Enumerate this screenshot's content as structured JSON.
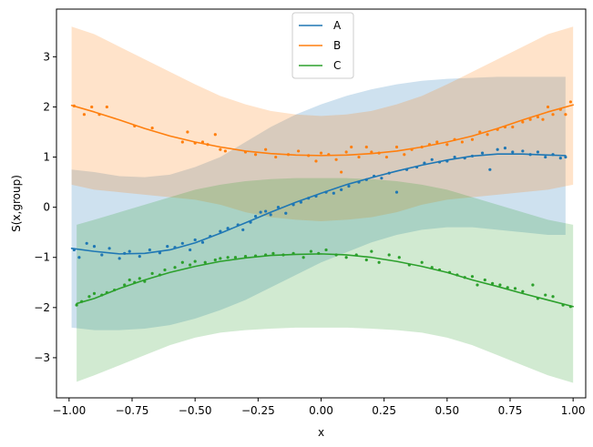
{
  "chart_data": {
    "type": "line",
    "title": "",
    "xlabel": "x",
    "ylabel": "S(x,group)",
    "xlim": [
      -1.05,
      1.05
    ],
    "ylim": [
      -3.8,
      3.95
    ],
    "xticks": [
      -1.0,
      -0.75,
      -0.5,
      -0.25,
      0.0,
      0.25,
      0.5,
      0.75,
      1.0
    ],
    "xtick_labels": [
      "−1.00",
      "−0.75",
      "−0.50",
      "−0.25",
      "0.00",
      "0.25",
      "0.50",
      "0.75",
      "1.00"
    ],
    "yticks": [
      -3,
      -2,
      -1,
      0,
      1,
      2,
      3
    ],
    "ytick_labels": [
      "−3",
      "−2",
      "−1",
      "0",
      "1",
      "2",
      "3"
    ],
    "grid": false,
    "legend_position": "top-center",
    "series": [
      {
        "name": "A",
        "color": "#1f77b4",
        "x": [
          -0.99,
          -0.9,
          -0.8,
          -0.7,
          -0.6,
          -0.5,
          -0.4,
          -0.3,
          -0.2,
          -0.1,
          0.0,
          0.1,
          0.2,
          0.3,
          0.4,
          0.5,
          0.6,
          0.7,
          0.8,
          0.9,
          0.97
        ],
        "y": [
          -0.82,
          -0.88,
          -0.93,
          -0.92,
          -0.85,
          -0.71,
          -0.52,
          -0.31,
          -0.1,
          0.1,
          0.28,
          0.45,
          0.59,
          0.72,
          0.84,
          0.94,
          1.02,
          1.06,
          1.06,
          1.04,
          1.03
        ],
        "band_upper": [
          0.75,
          0.7,
          0.62,
          0.6,
          0.65,
          0.8,
          1.0,
          1.3,
          1.6,
          1.85,
          2.05,
          2.22,
          2.35,
          2.45,
          2.52,
          2.56,
          2.58,
          2.6,
          2.6,
          2.6,
          2.6
        ],
        "band_lower": [
          -2.4,
          -2.45,
          -2.45,
          -2.42,
          -2.35,
          -2.22,
          -2.05,
          -1.85,
          -1.6,
          -1.35,
          -1.1,
          -0.9,
          -0.7,
          -0.55,
          -0.45,
          -0.4,
          -0.4,
          -0.45,
          -0.5,
          -0.55,
          -0.55
        ],
        "scatter_x": [
          -0.98,
          -0.96,
          -0.93,
          -0.9,
          -0.87,
          -0.84,
          -0.8,
          -0.78,
          -0.76,
          -0.72,
          -0.68,
          -0.64,
          -0.61,
          -0.58,
          -0.55,
          -0.52,
          -0.5,
          -0.47,
          -0.44,
          -0.4,
          -0.37,
          -0.33,
          -0.31,
          -0.28,
          -0.26,
          -0.24,
          -0.22,
          -0.2,
          -0.17,
          -0.14,
          -0.11,
          -0.08,
          -0.05,
          -0.02,
          0.02,
          0.05,
          0.08,
          0.11,
          0.15,
          0.18,
          0.21,
          0.24,
          0.27,
          0.3,
          0.34,
          0.38,
          0.41,
          0.44,
          0.47,
          0.5,
          0.53,
          0.57,
          0.6,
          0.64,
          0.67,
          0.7,
          0.73,
          0.76,
          0.8,
          0.83,
          0.86,
          0.89,
          0.92,
          0.95,
          0.97
        ],
        "scatter_y": [
          -0.85,
          -1.0,
          -0.72,
          -0.78,
          -0.95,
          -0.82,
          -1.02,
          -0.92,
          -0.88,
          -0.98,
          -0.85,
          -0.91,
          -0.78,
          -0.8,
          -0.72,
          -0.85,
          -0.65,
          -0.7,
          -0.58,
          -0.48,
          -0.42,
          -0.35,
          -0.45,
          -0.3,
          -0.18,
          -0.1,
          -0.08,
          -0.15,
          0.0,
          -0.12,
          0.05,
          0.1,
          0.18,
          0.22,
          0.3,
          0.28,
          0.35,
          0.42,
          0.5,
          0.55,
          0.62,
          0.58,
          0.68,
          0.3,
          0.75,
          0.8,
          0.88,
          0.95,
          0.9,
          0.92,
          1.0,
          0.98,
          1.02,
          1.08,
          0.75,
          1.15,
          1.18,
          1.1,
          1.12,
          1.05,
          1.1,
          1.0,
          1.05,
          0.98,
          1.0
        ]
      },
      {
        "name": "B",
        "color": "#ff7f0e",
        "x": [
          -0.99,
          -0.9,
          -0.8,
          -0.7,
          -0.6,
          -0.5,
          -0.4,
          -0.3,
          -0.2,
          -0.1,
          0.0,
          0.1,
          0.2,
          0.3,
          0.4,
          0.5,
          0.6,
          0.7,
          0.8,
          0.9,
          1.0
        ],
        "y": [
          2.03,
          1.9,
          1.74,
          1.57,
          1.42,
          1.3,
          1.2,
          1.12,
          1.07,
          1.04,
          1.03,
          1.04,
          1.07,
          1.12,
          1.2,
          1.3,
          1.42,
          1.57,
          1.74,
          1.9,
          2.04
        ],
        "band_upper": [
          3.6,
          3.45,
          3.2,
          2.95,
          2.7,
          2.45,
          2.22,
          2.05,
          1.92,
          1.85,
          1.82,
          1.85,
          1.92,
          2.05,
          2.22,
          2.45,
          2.7,
          2.95,
          3.2,
          3.45,
          3.6
        ],
        "band_lower": [
          0.45,
          0.35,
          0.3,
          0.25,
          0.2,
          0.15,
          0.05,
          -0.1,
          -0.2,
          -0.25,
          -0.28,
          -0.25,
          -0.2,
          -0.1,
          0.05,
          0.15,
          0.2,
          0.25,
          0.3,
          0.35,
          0.45
        ],
        "scatter_x": [
          -0.98,
          -0.94,
          -0.91,
          -0.88,
          -0.85,
          -0.74,
          -0.67,
          -0.55,
          -0.53,
          -0.5,
          -0.47,
          -0.45,
          -0.42,
          -0.4,
          -0.38,
          -0.3,
          -0.26,
          -0.22,
          -0.18,
          -0.13,
          -0.09,
          -0.05,
          -0.02,
          0.0,
          0.03,
          0.06,
          0.08,
          0.1,
          0.12,
          0.15,
          0.18,
          0.2,
          0.23,
          0.26,
          0.3,
          0.33,
          0.36,
          0.4,
          0.43,
          0.46,
          0.5,
          0.53,
          0.56,
          0.6,
          0.63,
          0.66,
          0.7,
          0.73,
          0.76,
          0.8,
          0.83,
          0.86,
          0.88,
          0.9,
          0.92,
          0.95,
          0.97,
          0.99
        ],
        "scatter_y": [
          2.02,
          1.85,
          2.0,
          1.85,
          2.0,
          1.62,
          1.58,
          1.3,
          1.5,
          1.28,
          1.3,
          1.25,
          1.45,
          1.15,
          1.12,
          1.1,
          1.05,
          1.15,
          1.0,
          1.05,
          1.12,
          1.03,
          0.92,
          1.08,
          1.05,
          0.95,
          0.7,
          1.1,
          1.2,
          1.0,
          1.2,
          1.1,
          1.08,
          1.0,
          1.2,
          1.05,
          1.15,
          1.2,
          1.25,
          1.3,
          1.25,
          1.35,
          1.3,
          1.35,
          1.5,
          1.45,
          1.55,
          1.6,
          1.6,
          1.7,
          1.75,
          1.8,
          1.75,
          2.0,
          1.85,
          1.95,
          1.85,
          2.1
        ]
      },
      {
        "name": "C",
        "color": "#2ca02c",
        "x": [
          -0.97,
          -0.9,
          -0.8,
          -0.7,
          -0.6,
          -0.5,
          -0.4,
          -0.3,
          -0.2,
          -0.1,
          0.0,
          0.1,
          0.2,
          0.3,
          0.4,
          0.5,
          0.6,
          0.7,
          0.8,
          0.9,
          1.0
        ],
        "y": [
          -1.92,
          -1.82,
          -1.62,
          -1.45,
          -1.3,
          -1.18,
          -1.08,
          -1.01,
          -0.96,
          -0.94,
          -0.93,
          -0.95,
          -1.0,
          -1.08,
          -1.18,
          -1.3,
          -1.45,
          -1.58,
          -1.72,
          -1.85,
          -1.98
        ],
        "band_upper": [
          -0.35,
          -0.25,
          -0.1,
          0.05,
          0.2,
          0.35,
          0.45,
          0.52,
          0.56,
          0.58,
          0.58,
          0.58,
          0.56,
          0.52,
          0.45,
          0.35,
          0.2,
          0.05,
          -0.1,
          -0.25,
          -0.35
        ],
        "band_lower": [
          -3.48,
          -3.35,
          -3.15,
          -2.95,
          -2.75,
          -2.6,
          -2.5,
          -2.45,
          -2.42,
          -2.4,
          -2.4,
          -2.4,
          -2.42,
          -2.45,
          -2.5,
          -2.6,
          -2.75,
          -2.95,
          -3.15,
          -3.35,
          -3.5
        ],
        "scatter_x": [
          -0.97,
          -0.95,
          -0.92,
          -0.9,
          -0.87,
          -0.85,
          -0.82,
          -0.78,
          -0.76,
          -0.74,
          -0.72,
          -0.7,
          -0.67,
          -0.64,
          -0.62,
          -0.58,
          -0.55,
          -0.52,
          -0.5,
          -0.46,
          -0.42,
          -0.4,
          -0.37,
          -0.34,
          -0.3,
          -0.26,
          -0.22,
          -0.19,
          -0.15,
          -0.11,
          -0.07,
          -0.04,
          -0.01,
          0.02,
          0.06,
          0.1,
          0.14,
          0.18,
          0.2,
          0.23,
          0.27,
          0.31,
          0.35,
          0.4,
          0.44,
          0.47,
          0.51,
          0.54,
          0.57,
          0.6,
          0.62,
          0.65,
          0.68,
          0.71,
          0.74,
          0.77,
          0.8,
          0.84,
          0.86,
          0.89,
          0.92,
          0.96,
          0.99
        ],
        "scatter_y": [
          -1.95,
          -1.88,
          -1.78,
          -1.72,
          -1.75,
          -1.7,
          -1.65,
          -1.55,
          -1.45,
          -1.5,
          -1.42,
          -1.48,
          -1.32,
          -1.35,
          -1.25,
          -1.2,
          -1.1,
          -1.15,
          -1.08,
          -1.1,
          -1.05,
          -1.02,
          -1.0,
          -1.0,
          -0.98,
          -0.97,
          -0.95,
          -0.92,
          -0.95,
          -0.92,
          -1.0,
          -0.88,
          -0.92,
          -0.85,
          -0.95,
          -1.0,
          -0.95,
          -1.05,
          -0.88,
          -1.1,
          -0.95,
          -1.0,
          -1.15,
          -1.1,
          -1.2,
          -1.25,
          -1.3,
          -1.35,
          -1.4,
          -1.38,
          -1.55,
          -1.45,
          -1.52,
          -1.55,
          -1.6,
          -1.62,
          -1.68,
          -1.55,
          -1.82,
          -1.75,
          -1.78,
          -1.95,
          -1.98
        ]
      }
    ]
  }
}
